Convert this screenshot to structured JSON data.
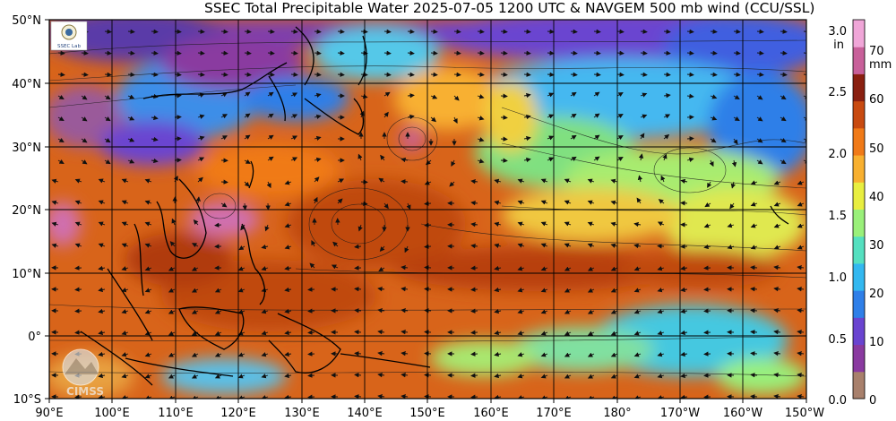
{
  "title": "SSEC Total Precipitable Water  2025-07-05 1200 UTC & NAVGEM 500 mb wind (CCU/SSL)",
  "lat_labels": [
    "50°N",
    "40°N",
    "30°N",
    "20°N",
    "10°N",
    "0°",
    "10°S"
  ],
  "lon_labels": [
    "90°E",
    "100°E",
    "110°E",
    "120°E",
    "130°E",
    "140°E",
    "150°E",
    "160°E",
    "170°E",
    "180°",
    "170°W",
    "160°W",
    "150°W"
  ],
  "colorbar": {
    "inch_unit": "in",
    "mm_unit": "mm",
    "inch_ticks": [
      "3.0",
      "2.5",
      "2.0",
      "1.5",
      "1.0",
      "0.5",
      "0.0"
    ],
    "mm_ticks": [
      "70",
      "60",
      "50",
      "40",
      "30",
      "20",
      "10",
      "0"
    ],
    "colors": [
      "#a8806c",
      "#8a3aa0",
      "#6a44d0",
      "#2f7fe8",
      "#33b8f0",
      "#55e0c0",
      "#9af07a",
      "#e8ee40",
      "#f8b030",
      "#f07a18",
      "#c84a10",
      "#8a2010",
      "#c8609a",
      "#f0a6d8"
    ]
  },
  "logos": {
    "ssec_text": "SSEC Lab",
    "cimss_text": "CIMSS"
  }
}
